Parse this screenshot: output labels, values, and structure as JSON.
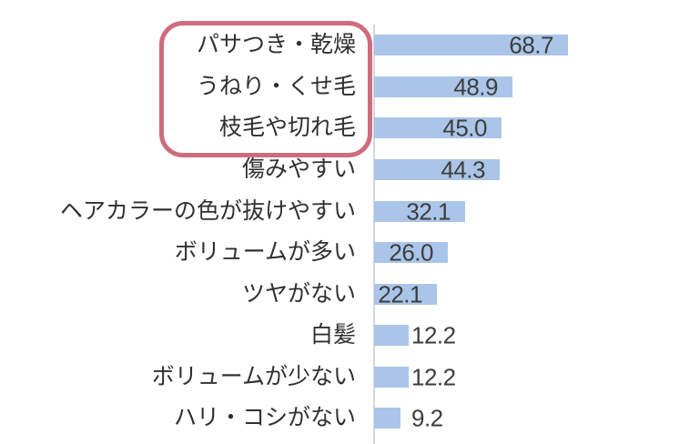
{
  "chart_data": {
    "type": "bar",
    "orientation": "horizontal",
    "title": "",
    "xlabel": "",
    "ylabel": "",
    "grid": false,
    "legend": false,
    "xlim": [
      0,
      80
    ],
    "categories": [
      "パサつき・乾燥",
      "うねり・くせ毛",
      "枝毛や切れ毛",
      "傷みやすい",
      "ヘアカラーの色が抜けやすい",
      "ボリュームが多い",
      "ツヤがない",
      "白髪",
      "ボリュームが少ない",
      "ハリ・コシがない"
    ],
    "values": [
      68.7,
      48.9,
      45.0,
      44.3,
      32.1,
      26.0,
      22.1,
      12.2,
      12.2,
      9.2
    ],
    "value_labels": [
      "68.7",
      "48.9",
      "45.0",
      "44.3",
      "32.1",
      "26.0",
      "22.1",
      "12.2",
      "12.2",
      "9.2"
    ],
    "bar_color": "#aac5e8",
    "axis_line_color": "#d3d6dc",
    "value_text_color": "#3d3d3d",
    "category_text_color": "#303030",
    "highlight": {
      "highlighted_categories": [
        "パサつき・乾燥",
        "うねり・くせ毛",
        "枝毛や切れ毛"
      ],
      "box_color": "#c95c6f"
    }
  }
}
